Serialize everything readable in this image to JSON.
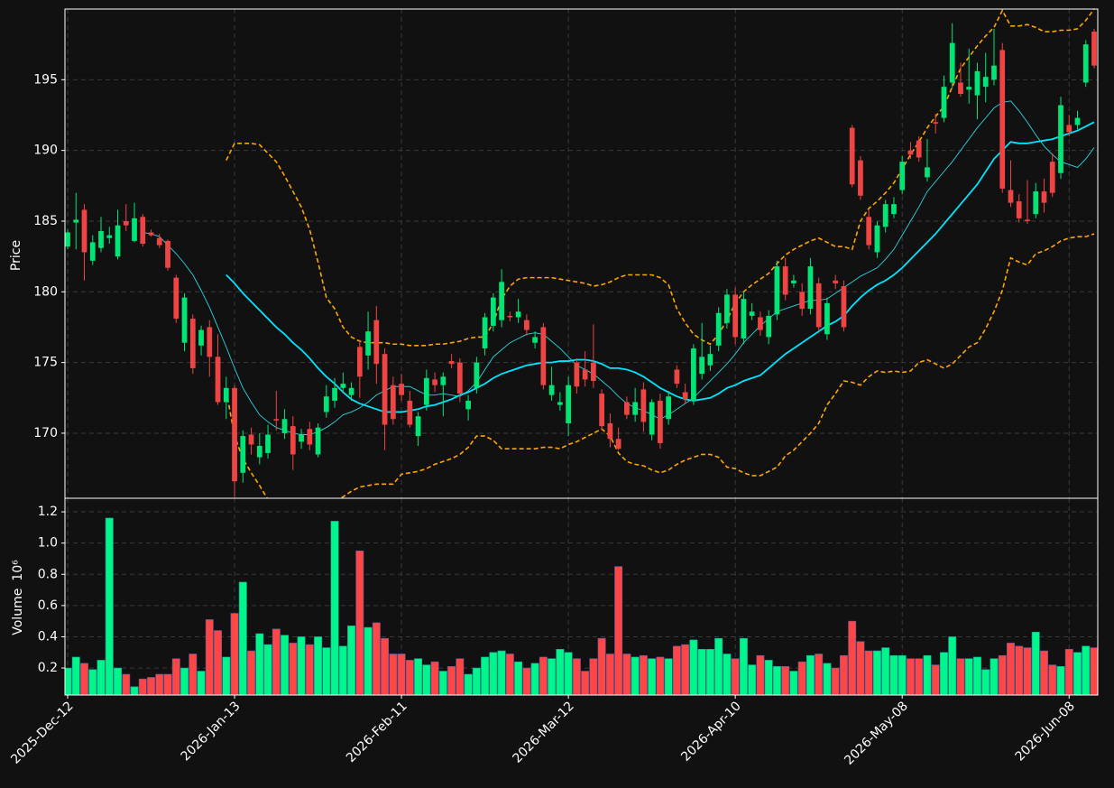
{
  "chart_data": {
    "type": "candlestick",
    "ylabel": "Price",
    "grid": true,
    "up_color": "#00e676",
    "down_color": "#ef4444",
    "ylim": [
      165.4,
      200
    ],
    "yticks": [
      170,
      175,
      180,
      185,
      190,
      195
    ],
    "categories": [
      "2025-Dec-12",
      null,
      null,
      null,
      null,
      null,
      null,
      null,
      null,
      null,
      null,
      null,
      null,
      null,
      null,
      null,
      null,
      null,
      null,
      null,
      "2026-Jan-13",
      null,
      null,
      null,
      null,
      null,
      null,
      null,
      null,
      null,
      null,
      null,
      null,
      null,
      null,
      null,
      null,
      null,
      null,
      null,
      "2026-Feb-11",
      null,
      null,
      null,
      null,
      null,
      null,
      null,
      null,
      null,
      null,
      null,
      null,
      null,
      null,
      null,
      null,
      null,
      null,
      null,
      "2026-Mar-12",
      null,
      null,
      null,
      null,
      null,
      null,
      null,
      null,
      null,
      null,
      null,
      null,
      null,
      null,
      null,
      null,
      null,
      null,
      null,
      "2026-Apr-10",
      null,
      null,
      null,
      null,
      null,
      null,
      null,
      null,
      null,
      null,
      null,
      null,
      null,
      null,
      null,
      null,
      null,
      null,
      null,
      "2026-May-08",
      null,
      null,
      null,
      null,
      null,
      null,
      null,
      null,
      null,
      null,
      null,
      null,
      null,
      null,
      null,
      null,
      null,
      null,
      null,
      "2026-Jun-08",
      null,
      null,
      null
    ],
    "open": [
      183.2,
      184.9,
      185.8,
      182.2,
      183.1,
      183.8,
      182.5,
      185.0,
      183.6,
      185.3,
      184.2,
      183.8,
      183.6,
      181.0,
      176.4,
      178.1,
      176.2,
      177.5,
      175.4,
      172.2,
      173.2,
      167.2,
      169.9,
      168.3,
      168.6,
      171.0,
      170.0,
      170.5,
      169.4,
      170.3,
      168.5,
      171.5,
      172.3,
      173.2,
      172.7,
      176.1,
      175.5,
      178.0,
      175.6,
      173.4,
      173.5,
      172.3,
      169.8,
      172.0,
      173.8,
      173.4,
      175.1,
      175.0,
      171.7,
      173.2,
      176.0,
      177.6,
      178.0,
      178.3,
      178.2,
      178.0,
      176.4,
      177.5,
      172.7,
      172.0,
      170.7,
      175.0,
      174.5,
      175.0,
      172.8,
      170.7,
      169.6,
      172.2,
      171.3,
      173.1,
      169.9,
      172.3,
      171.0,
      174.5,
      172.9,
      172.3,
      174.2,
      174.8,
      176.2,
      177.8,
      179.8,
      176.7,
      178.3,
      178.2,
      176.8,
      178.4,
      181.8,
      180.6,
      180.0,
      178.8,
      180.6,
      177.0,
      180.8,
      180.4,
      191.6,
      189.3,
      185.3,
      182.8,
      184.6,
      185.5,
      187.2,
      190.0,
      190.7,
      188.1,
      192.0,
      192.3,
      194.8,
      194.8,
      194.3,
      193.9,
      194.5,
      195.0,
      197.1,
      187.2,
      186.4,
      185.1,
      185.5,
      187.1,
      189.2,
      188.4,
      191.8,
      191.8,
      194.8,
      198.4
    ],
    "high": [
      184.4,
      187.0,
      186.2,
      184.0,
      185.3,
      184.6,
      185.8,
      186.2,
      186.3,
      185.5,
      184.4,
      184.1,
      183.7,
      181.2,
      179.9,
      178.4,
      177.6,
      178.0,
      177.0,
      174.0,
      173.4,
      170.2,
      170.4,
      170.0,
      170.6,
      173.0,
      171.7,
      171.2,
      170.3,
      170.8,
      170.7,
      173.4,
      173.9,
      174.3,
      173.6,
      176.6,
      178.6,
      179.0,
      176.0,
      174.0,
      174.2,
      173.0,
      171.5,
      174.5,
      174.3,
      174.3,
      175.6,
      175.3,
      172.7,
      175.4,
      178.5,
      179.9,
      181.6,
      178.6,
      179.5,
      178.4,
      177.2,
      177.8,
      174.7,
      172.9,
      174.0,
      175.3,
      175.8,
      177.7,
      173.1,
      171.4,
      170.4,
      172.6,
      173.2,
      173.6,
      172.4,
      172.8,
      173.0,
      174.8,
      173.5,
      176.3,
      177.8,
      176.2,
      178.9,
      180.2,
      180.3,
      180.0,
      179.2,
      178.6,
      178.7,
      182.2,
      182.4,
      181.2,
      180.6,
      182.4,
      181.0,
      179.6,
      181.2,
      180.8,
      191.8,
      189.6,
      185.8,
      185.0,
      186.5,
      186.7,
      189.6,
      190.6,
      191.0,
      190.8,
      192.6,
      195.3,
      199.0,
      196.2,
      197.2,
      196.2,
      196.9,
      198.6,
      197.6,
      189.3,
      186.9,
      187.9,
      187.7,
      188.0,
      189.8,
      193.8,
      192.5,
      192.8,
      197.8,
      198.6
    ],
    "low": [
      183.0,
      183.0,
      180.8,
      181.9,
      182.8,
      183.4,
      182.3,
      184.3,
      183.5,
      183.2,
      183.9,
      183.1,
      181.5,
      177.8,
      175.8,
      174.2,
      175.5,
      174.0,
      172.0,
      171.0,
      165.5,
      166.5,
      168.5,
      167.8,
      168.2,
      170.2,
      169.6,
      167.4,
      168.9,
      168.8,
      168.3,
      171.1,
      171.8,
      172.9,
      172.3,
      172.5,
      174.5,
      173.5,
      168.8,
      170.6,
      172.3,
      170.4,
      169.1,
      171.6,
      172.9,
      171.2,
      174.6,
      172.2,
      170.9,
      172.8,
      175.5,
      177.2,
      177.5,
      177.9,
      177.8,
      176.9,
      176.0,
      173.1,
      172.3,
      171.6,
      169.8,
      172.8,
      173.3,
      173.2,
      170.2,
      169.0,
      168.8,
      171.0,
      170.8,
      170.1,
      169.5,
      168.9,
      170.6,
      173.2,
      172.1,
      172.0,
      173.8,
      174.4,
      175.8,
      177.4,
      176.3,
      176.3,
      178.0,
      176.9,
      176.3,
      178.0,
      179.4,
      180.3,
      178.3,
      178.4,
      177.2,
      176.6,
      180.2,
      177.2,
      187.4,
      186.5,
      183.0,
      182.4,
      184.2,
      185.2,
      186.9,
      189.4,
      189.2,
      187.8,
      191.2,
      192.0,
      194.4,
      193.8,
      193.3,
      192.2,
      193.4,
      194.6,
      187.0,
      186.0,
      184.9,
      184.8,
      185.2,
      185.6,
      186.7,
      188.0,
      191.0,
      191.5,
      194.5,
      195.8
    ],
    "close": [
      184.2,
      185.1,
      182.8,
      183.5,
      184.3,
      184.0,
      184.7,
      184.7,
      185.2,
      183.4,
      184.0,
      183.3,
      181.7,
      178.1,
      179.6,
      174.6,
      177.3,
      175.4,
      172.2,
      173.2,
      166.6,
      169.8,
      169.2,
      169.1,
      169.9,
      170.9,
      171.0,
      168.5,
      169.9,
      169.2,
      170.4,
      172.6,
      173.2,
      173.5,
      173.2,
      174.0,
      177.2,
      174.9,
      170.6,
      171.0,
      172.7,
      170.6,
      171.2,
      173.9,
      173.4,
      174.0,
      174.9,
      172.8,
      172.3,
      175.0,
      178.2,
      179.6,
      180.7,
      178.2,
      178.6,
      177.3,
      176.8,
      173.4,
      173.4,
      172.2,
      173.4,
      173.3,
      173.8,
      173.7,
      170.5,
      169.6,
      168.9,
      171.3,
      172.2,
      170.8,
      172.2,
      169.3,
      172.6,
      173.5,
      172.4,
      176.0,
      175.4,
      175.6,
      178.5,
      179.8,
      176.8,
      179.5,
      178.6,
      177.3,
      178.3,
      181.8,
      179.8,
      180.8,
      178.8,
      181.8,
      177.5,
      179.2,
      180.6,
      177.5,
      187.6,
      186.8,
      183.3,
      184.7,
      186.2,
      186.2,
      189.2,
      189.7,
      189.5,
      188.8,
      191.9,
      194.5,
      197.6,
      194.0,
      194.5,
      195.6,
      195.2,
      196.0,
      187.3,
      186.3,
      185.2,
      185.0,
      187.1,
      186.3,
      187.0,
      193.2,
      191.3,
      192.3,
      197.5,
      196.0
    ],
    "series": [
      {
        "color": "#ffa500",
        "style": "dashed",
        "values": [
          null,
          null,
          null,
          null,
          null,
          null,
          null,
          null,
          null,
          null,
          null,
          null,
          null,
          null,
          null,
          null,
          null,
          null,
          null,
          189.3,
          190.5,
          190.5,
          190.5,
          190.4,
          189.8,
          189.2,
          188.2,
          187.1,
          186.0,
          184.4,
          182.1,
          179.6,
          178.8,
          177.5,
          176.8,
          176.5,
          176.4,
          176.4,
          176.4,
          176.3,
          176.3,
          176.2,
          176.2,
          176.2,
          176.3,
          176.3,
          176.4,
          176.5,
          176.7,
          176.8,
          176.8,
          177.8,
          179.5,
          180.4,
          180.9,
          181.0,
          181.0,
          181.0,
          181.0,
          180.9,
          180.8,
          180.7,
          180.6,
          180.4,
          180.5,
          180.7,
          181.0,
          181.2,
          181.2,
          181.2,
          181.2,
          181.0,
          180.5,
          178.8,
          177.8,
          177.0,
          176.6,
          176.3,
          177.0,
          178.0,
          179.2,
          180.0,
          180.5,
          180.9,
          181.3,
          182.0,
          182.6,
          183.0,
          183.3,
          183.6,
          183.8,
          183.5,
          183.2,
          183.2,
          183.0,
          185.0,
          185.9,
          186.4,
          187.0,
          187.7,
          188.7,
          189.7,
          190.6,
          191.6,
          192.4,
          193.1,
          194.5,
          195.8,
          196.6,
          197.4,
          198.1,
          198.7,
          199.9,
          198.8,
          198.8,
          198.9,
          198.7,
          198.4,
          198.4,
          198.5,
          198.5,
          198.6,
          199.2,
          200.0
        ]
      },
      {
        "color": "#ffa500",
        "style": "dashed",
        "values": [
          null,
          null,
          null,
          null,
          null,
          null,
          null,
          null,
          null,
          null,
          null,
          null,
          null,
          null,
          null,
          null,
          null,
          null,
          null,
          173.0,
          169.8,
          168.2,
          167.2,
          166.3,
          165.3,
          165.0,
          164.6,
          164.3,
          164.1,
          164.0,
          164.3,
          164.7,
          165.1,
          165.5,
          165.9,
          166.2,
          166.3,
          166.4,
          166.4,
          166.4,
          167.1,
          167.2,
          167.3,
          167.5,
          167.8,
          168.0,
          168.2,
          168.5,
          169.0,
          169.8,
          169.8,
          169.5,
          168.9,
          168.9,
          168.9,
          168.9,
          168.9,
          169.0,
          169.0,
          168.9,
          169.2,
          169.4,
          169.7,
          170.0,
          170.3,
          169.8,
          168.6,
          168.0,
          167.8,
          167.7,
          167.4,
          167.2,
          167.4,
          167.8,
          168.1,
          168.3,
          168.5,
          168.5,
          168.3,
          167.6,
          167.5,
          167.2,
          167.0,
          167.0,
          167.3,
          167.6,
          168.4,
          168.8,
          169.4,
          170.0,
          170.7,
          172.0,
          172.8,
          173.7,
          173.6,
          173.4,
          174.0,
          174.4,
          174.3,
          174.4,
          174.3,
          174.4,
          175.0,
          175.2,
          174.9,
          174.6,
          174.9,
          175.5,
          176.1,
          176.4,
          177.4,
          178.6,
          180.1,
          182.4,
          182.1,
          181.9,
          182.7,
          182.9,
          183.2,
          183.6,
          183.8,
          183.9,
          183.9,
          184.1
        ]
      },
      {
        "color": "#2bd4e0",
        "style": "thin",
        "values": [
          null,
          null,
          null,
          null,
          null,
          null,
          null,
          null,
          null,
          184.2,
          184.1,
          183.9,
          183.3,
          182.7,
          182.0,
          181.2,
          180.1,
          178.9,
          177.5,
          176.1,
          174.6,
          173.2,
          172.2,
          171.3,
          170.8,
          170.4,
          170.2,
          170.0,
          169.9,
          169.9,
          170.1,
          170.4,
          170.8,
          171.3,
          171.5,
          171.8,
          172.2,
          172.7,
          173.0,
          173.3,
          173.3,
          173.3,
          173.0,
          172.7,
          172.7,
          172.8,
          172.7,
          172.6,
          173.0,
          173.6,
          174.5,
          175.4,
          175.9,
          176.4,
          176.7,
          177.0,
          177.1,
          177.0,
          176.5,
          176.0,
          175.4,
          174.8,
          174.5,
          174.2,
          173.7,
          173.2,
          172.6,
          172.1,
          171.8,
          171.6,
          171.3,
          171.0,
          171.3,
          171.7,
          172.1,
          172.5,
          173.1,
          173.7,
          174.3,
          174.9,
          175.6,
          176.4,
          177.0,
          177.6,
          178.1,
          178.6,
          178.8,
          179.0,
          179.2,
          179.4,
          179.4,
          179.5,
          179.9,
          180.3,
          180.7,
          181.1,
          181.4,
          181.7,
          182.3,
          183.0,
          184.0,
          185.0,
          186.0,
          187.1,
          187.8,
          188.5,
          189.2,
          190.0,
          190.8,
          191.6,
          192.3,
          193.0,
          193.4,
          193.5,
          192.8,
          192.0,
          191.1,
          190.3,
          189.7,
          189.2,
          189.0,
          188.8,
          189.4,
          190.2
        ]
      },
      {
        "color": "#00e5ff",
        "style": "thick",
        "values": [
          null,
          null,
          null,
          null,
          null,
          null,
          null,
          null,
          null,
          null,
          null,
          null,
          null,
          null,
          null,
          null,
          null,
          null,
          null,
          181.2,
          180.6,
          179.9,
          179.3,
          178.7,
          178.1,
          177.5,
          177.0,
          176.4,
          175.9,
          175.3,
          174.6,
          174.0,
          173.5,
          172.9,
          172.4,
          172.1,
          171.9,
          171.7,
          171.5,
          171.5,
          171.5,
          171.6,
          171.7,
          171.9,
          172.0,
          172.2,
          172.4,
          172.7,
          172.9,
          173.2,
          173.5,
          173.9,
          174.2,
          174.4,
          174.6,
          174.8,
          174.9,
          175.0,
          175.0,
          175.1,
          175.1,
          175.2,
          175.2,
          175.1,
          174.9,
          174.6,
          174.6,
          174.5,
          174.3,
          174.0,
          173.6,
          173.2,
          172.9,
          172.6,
          172.4,
          172.3,
          172.4,
          172.5,
          172.8,
          173.2,
          173.4,
          173.7,
          173.9,
          174.1,
          174.6,
          175.1,
          175.6,
          176.0,
          176.4,
          176.8,
          177.2,
          177.6,
          177.9,
          178.3,
          179.0,
          179.6,
          180.1,
          180.5,
          180.8,
          181.2,
          181.7,
          182.3,
          182.9,
          183.5,
          184.1,
          184.8,
          185.5,
          186.2,
          186.9,
          187.6,
          188.5,
          189.4,
          190.0,
          190.6,
          190.5,
          190.5,
          190.6,
          190.7,
          190.8,
          191.0,
          191.2,
          191.4,
          191.7,
          192.0
        ]
      }
    ],
    "volume": {
      "ylabel": "Volume",
      "offset_label": "10⁶",
      "ylim": [
        0.027,
        1.287
      ],
      "yticks": [
        0.2,
        0.4,
        0.6,
        0.8,
        {
          "value": 1.0,
          "label": "1.0"
        },
        1.2
      ],
      "values": [
        0.2,
        0.27,
        0.23,
        0.19,
        0.25,
        1.16,
        0.2,
        0.16,
        0.08,
        0.13,
        0.14,
        0.16,
        0.16,
        0.26,
        0.2,
        0.29,
        0.18,
        0.51,
        0.44,
        0.27,
        0.55,
        0.75,
        0.31,
        0.42,
        0.35,
        0.45,
        0.41,
        0.36,
        0.4,
        0.35,
        0.4,
        0.33,
        1.14,
        0.34,
        0.47,
        0.95,
        0.46,
        0.49,
        0.39,
        0.29,
        0.29,
        0.25,
        0.26,
        0.22,
        0.24,
        0.18,
        0.21,
        0.26,
        0.16,
        0.2,
        0.27,
        0.3,
        0.31,
        0.29,
        0.24,
        0.2,
        0.23,
        0.27,
        0.26,
        0.32,
        0.3,
        0.26,
        0.18,
        0.26,
        0.39,
        0.29,
        0.85,
        0.29,
        0.27,
        0.28,
        0.26,
        0.27,
        0.26,
        0.34,
        0.35,
        0.38,
        0.32,
        0.32,
        0.39,
        0.29,
        0.26,
        0.39,
        0.22,
        0.28,
        0.25,
        0.21,
        0.21,
        0.18,
        0.24,
        0.28,
        0.29,
        0.23,
        0.2,
        0.28,
        0.5,
        0.37,
        0.31,
        0.31,
        0.33,
        0.28,
        0.28,
        0.26,
        0.26,
        0.28,
        0.22,
        0.3,
        0.4,
        0.26,
        0.26,
        0.27,
        0.19,
        0.26,
        0.28,
        0.36,
        0.34,
        0.33,
        0.43,
        0.31,
        0.22,
        0.21,
        0.32,
        0.3,
        0.34,
        0.33
      ]
    }
  }
}
